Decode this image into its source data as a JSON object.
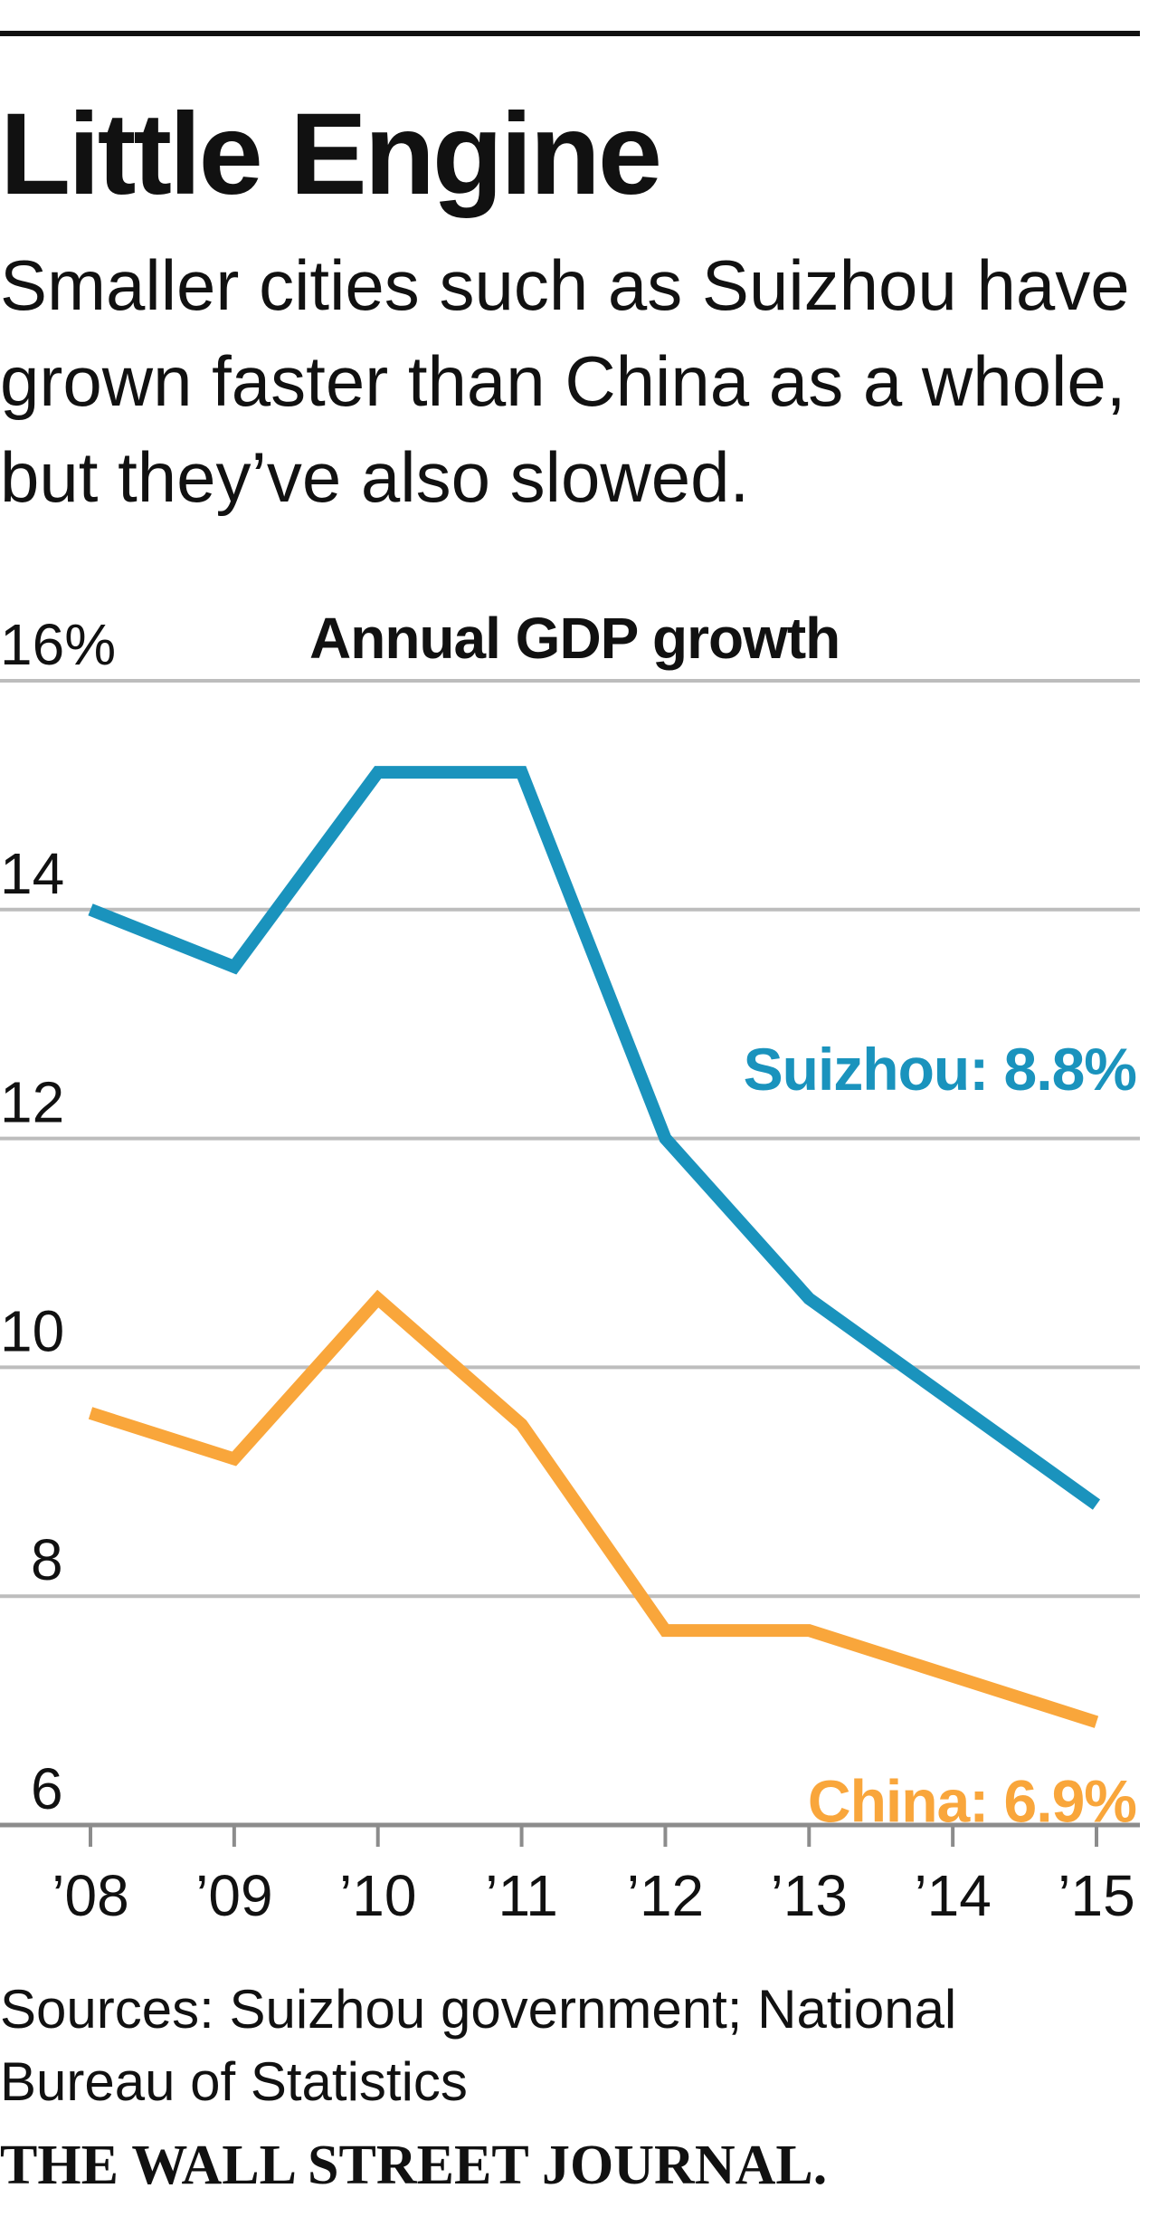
{
  "header": {
    "title": "Little Engine",
    "subtitle": "Smaller cities such as Suizhou have grown faster than China as a whole, but they’ve also slowed."
  },
  "colors": {
    "suizhou": "#1a93bd",
    "china": "#f9a63b",
    "grid": "#bdbdbd",
    "axis": "#8c8c8c"
  },
  "chart_data": {
    "type": "line",
    "title": "Annual GDP growth",
    "x": [
      "’08",
      "’09",
      "’10",
      "’11",
      "’12",
      "’13",
      "’14",
      "’15"
    ],
    "ylim": [
      6,
      16
    ],
    "yticks": [
      6,
      8,
      10,
      12,
      14,
      16
    ],
    "ytick_labels": [
      "6",
      "8",
      "10",
      "12",
      "14",
      "16%"
    ],
    "grid": true,
    "series": [
      {
        "name": "Suizhou",
        "label": "Suizhou: 8.8%",
        "color": "#1a93bd",
        "values": [
          14.0,
          13.5,
          15.2,
          15.2,
          12.0,
          10.6,
          9.7,
          8.8
        ]
      },
      {
        "name": "China",
        "label": "China: 6.9%",
        "color": "#f9a63b",
        "values": [
          9.6,
          9.2,
          10.6,
          9.5,
          7.7,
          7.7,
          7.3,
          6.9
        ]
      }
    ]
  },
  "footer": {
    "source": "Sources: Suizhou government; National Bureau of Statistics",
    "masthead": "THE WALL STREET JOURNAL."
  }
}
